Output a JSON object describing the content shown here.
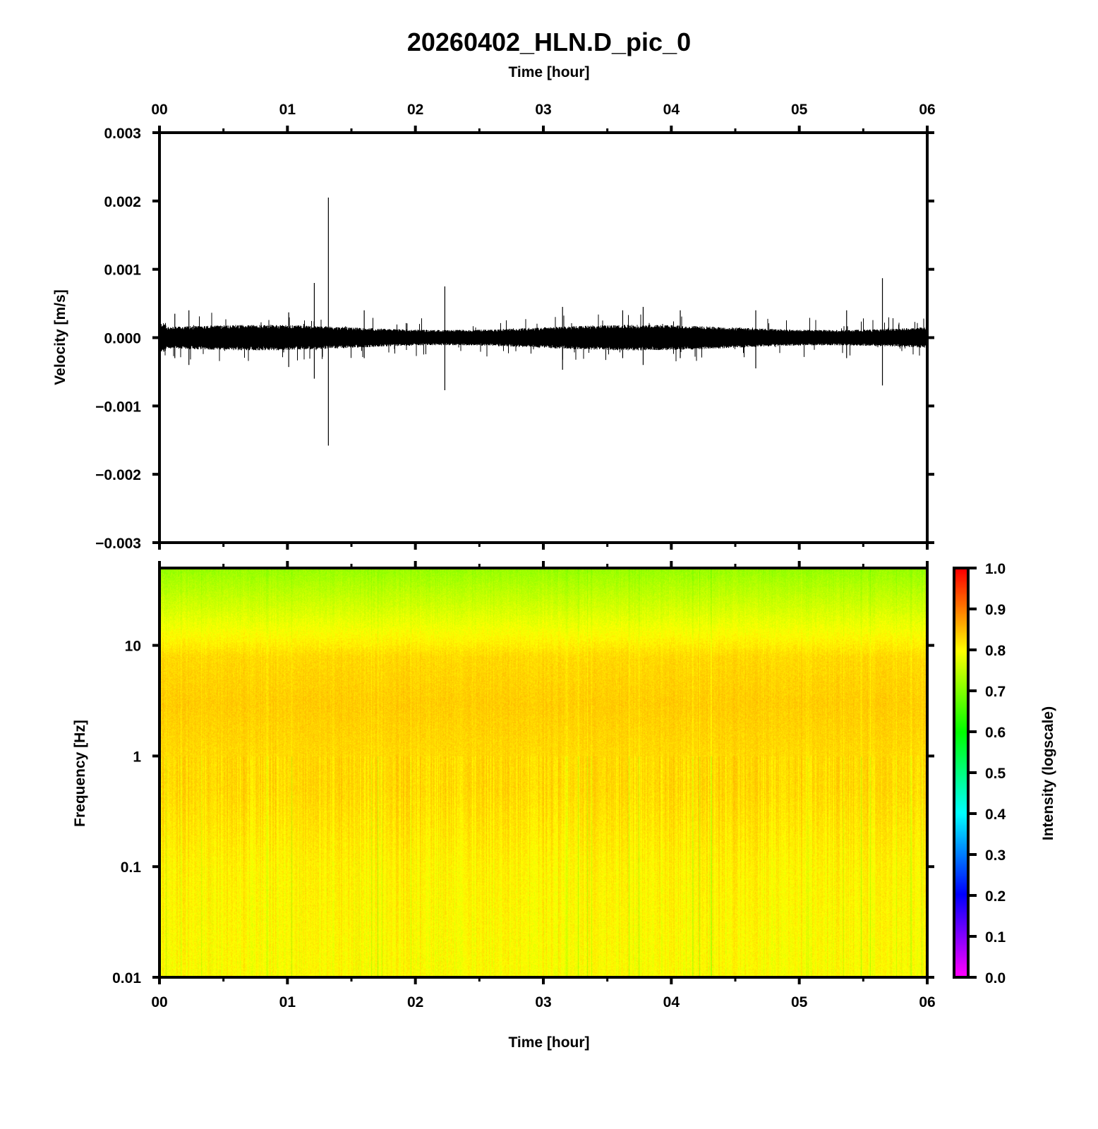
{
  "chart_data": [
    {
      "type": "line",
      "title": "20260402_HLN.D_pic_0",
      "top_xlabel": "Time [hour]",
      "ylabel": "Velocity [m/s]",
      "xlim": [
        0,
        6
      ],
      "ylim": [
        -0.003,
        0.003
      ],
      "x_ticks": [
        "00",
        "01",
        "02",
        "03",
        "04",
        "05",
        "06"
      ],
      "y_ticks": [
        "0.003",
        "0.002",
        "0.001",
        "0.000",
        "−0.001",
        "−0.002",
        "−0.003"
      ],
      "y_tick_values": [
        0.003,
        0.002,
        0.001,
        0,
        -0.001,
        -0.002,
        -0.003
      ],
      "background_noise_amplitude": 0.00015,
      "spikes": [
        {
          "t": 0.12,
          "max": 0.00035,
          "min": -0.0003
        },
        {
          "t": 0.23,
          "max": 0.0004,
          "min": -0.0004
        },
        {
          "t": 1.01,
          "max": 0.00037,
          "min": -0.00043
        },
        {
          "t": 1.21,
          "max": 0.0008,
          "min": -0.0006
        },
        {
          "t": 1.32,
          "max": 0.00205,
          "min": -0.00158
        },
        {
          "t": 1.6,
          "max": 0.0004,
          "min": -0.0003
        },
        {
          "t": 2.23,
          "max": 0.00075,
          "min": -0.00077
        },
        {
          "t": 3.15,
          "max": 0.00045,
          "min": -0.00047
        },
        {
          "t": 3.62,
          "max": 0.0004,
          "min": -0.0003
        },
        {
          "t": 3.78,
          "max": 0.00045,
          "min": -0.0004
        },
        {
          "t": 4.07,
          "max": 0.0004,
          "min": -0.0003
        },
        {
          "t": 4.66,
          "max": 0.0004,
          "min": -0.00045
        },
        {
          "t": 5.37,
          "max": 0.0004,
          "min": -0.0003
        },
        {
          "t": 5.65,
          "max": 0.00087,
          "min": -0.0007
        }
      ]
    },
    {
      "type": "heatmap",
      "xlabel": "Time [hour]",
      "ylabel": "Frequency [Hz]",
      "xlim": [
        0,
        6
      ],
      "ylim_log": [
        0.01,
        50
      ],
      "x_ticks": [
        "00",
        "01",
        "02",
        "03",
        "04",
        "05",
        "06"
      ],
      "y_ticks": [
        "10",
        "1",
        "0.1",
        "0.01"
      ],
      "y_tick_values": [
        10,
        1,
        0.1,
        0.01
      ],
      "intensity_profile": {
        "frequency_hz": [
          0.01,
          0.1,
          0.5,
          1,
          3,
          8,
          15,
          30,
          50
        ],
        "intensity": [
          0.8,
          0.81,
          0.83,
          0.83,
          0.84,
          0.83,
          0.79,
          0.75,
          0.72
        ]
      },
      "colorbar": {
        "label": "Intensity (logscale)",
        "range": [
          0,
          1
        ],
        "ticks": [
          "1.0",
          "0.9",
          "0.8",
          "0.7",
          "0.6",
          "0.5",
          "0.4",
          "0.3",
          "0.2",
          "0.1",
          "0.0"
        ],
        "colors": [
          "#ff00ff",
          "#0000ff",
          "#00ffff",
          "#00ff00",
          "#ffff00",
          "#ff0000"
        ]
      }
    }
  ]
}
